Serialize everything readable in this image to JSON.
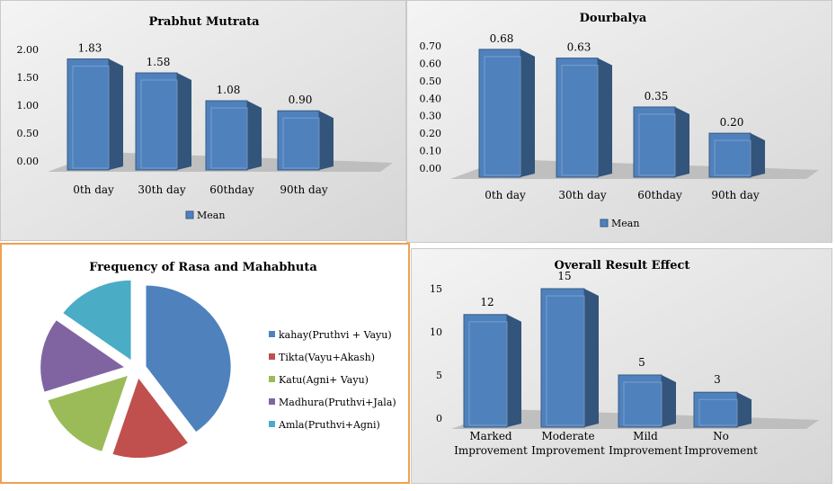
{
  "chart_data": [
    {
      "id": "c1",
      "type": "bar",
      "title": "Prabhut Mutrata",
      "categories": [
        "0th day",
        "30th day",
        "60thday",
        "90th day"
      ],
      "series": [
        {
          "name": "Mean",
          "values": [
            1.83,
            1.58,
            1.08,
            0.9
          ]
        }
      ],
      "labels": [
        "1.83",
        "1.58",
        "1.08",
        "0.90"
      ],
      "yticks": [
        "0.00",
        "0.50",
        "1.00",
        "1.50",
        "2.00"
      ],
      "ylim": [
        0,
        2.0
      ],
      "xlabel": "",
      "ylabel": "",
      "legend": "bottom",
      "color": "#4f81bd"
    },
    {
      "id": "c2",
      "type": "bar",
      "title": "Dourbalya",
      "categories": [
        "0th day",
        "30th day",
        "60thday",
        "90th day"
      ],
      "series": [
        {
          "name": "Mean",
          "values": [
            0.68,
            0.63,
            0.35,
            0.2
          ]
        }
      ],
      "labels": [
        "0.68",
        "0.63",
        "0.35",
        "0.20"
      ],
      "yticks": [
        "0.00",
        "0.10",
        "0.20",
        "0.30",
        "0.40",
        "0.50",
        "0.60",
        "0.70"
      ],
      "ylim": [
        0,
        0.7
      ],
      "xlabel": "",
      "ylabel": "",
      "legend": "bottom",
      "color": "#4f81bd"
    },
    {
      "id": "c3",
      "type": "pie",
      "title": "Frequency of Rasa and Mahabhuta",
      "legend": "right",
      "slices": [
        {
          "label": "kahay(Pruthvi + Vayu)",
          "value": 40,
          "color": "#4f81bd"
        },
        {
          "label": "Tikta(Vayu+Akash)",
          "value": 15,
          "color": "#c0504d"
        },
        {
          "label": "Katu(Agni+ Vayu)",
          "value": 15,
          "color": "#9bbb59"
        },
        {
          "label": "Madhura(Pruthvi+Jala)",
          "value": 15,
          "color": "#8064a2"
        },
        {
          "label": "Amla(Pruthvi+Agni)",
          "value": 15,
          "color": "#4bacc6"
        }
      ]
    },
    {
      "id": "c4",
      "type": "bar",
      "title": "Overall Result Effect",
      "categories": [
        [
          "Marked",
          "Improvement"
        ],
        [
          "Moderate",
          "Improvement"
        ],
        [
          "Mild",
          "Improvement"
        ],
        [
          "No",
          "Improvement"
        ]
      ],
      "series": [
        {
          "name": "",
          "values": [
            12,
            15,
            5,
            3
          ]
        }
      ],
      "labels": [
        "12",
        "15",
        "5",
        "3"
      ],
      "yticks": [
        "0",
        "5",
        "10",
        "15"
      ],
      "ylim": [
        0,
        15
      ],
      "xlabel": "",
      "ylabel": "",
      "legend": "none",
      "color": "#4f81bd"
    }
  ]
}
